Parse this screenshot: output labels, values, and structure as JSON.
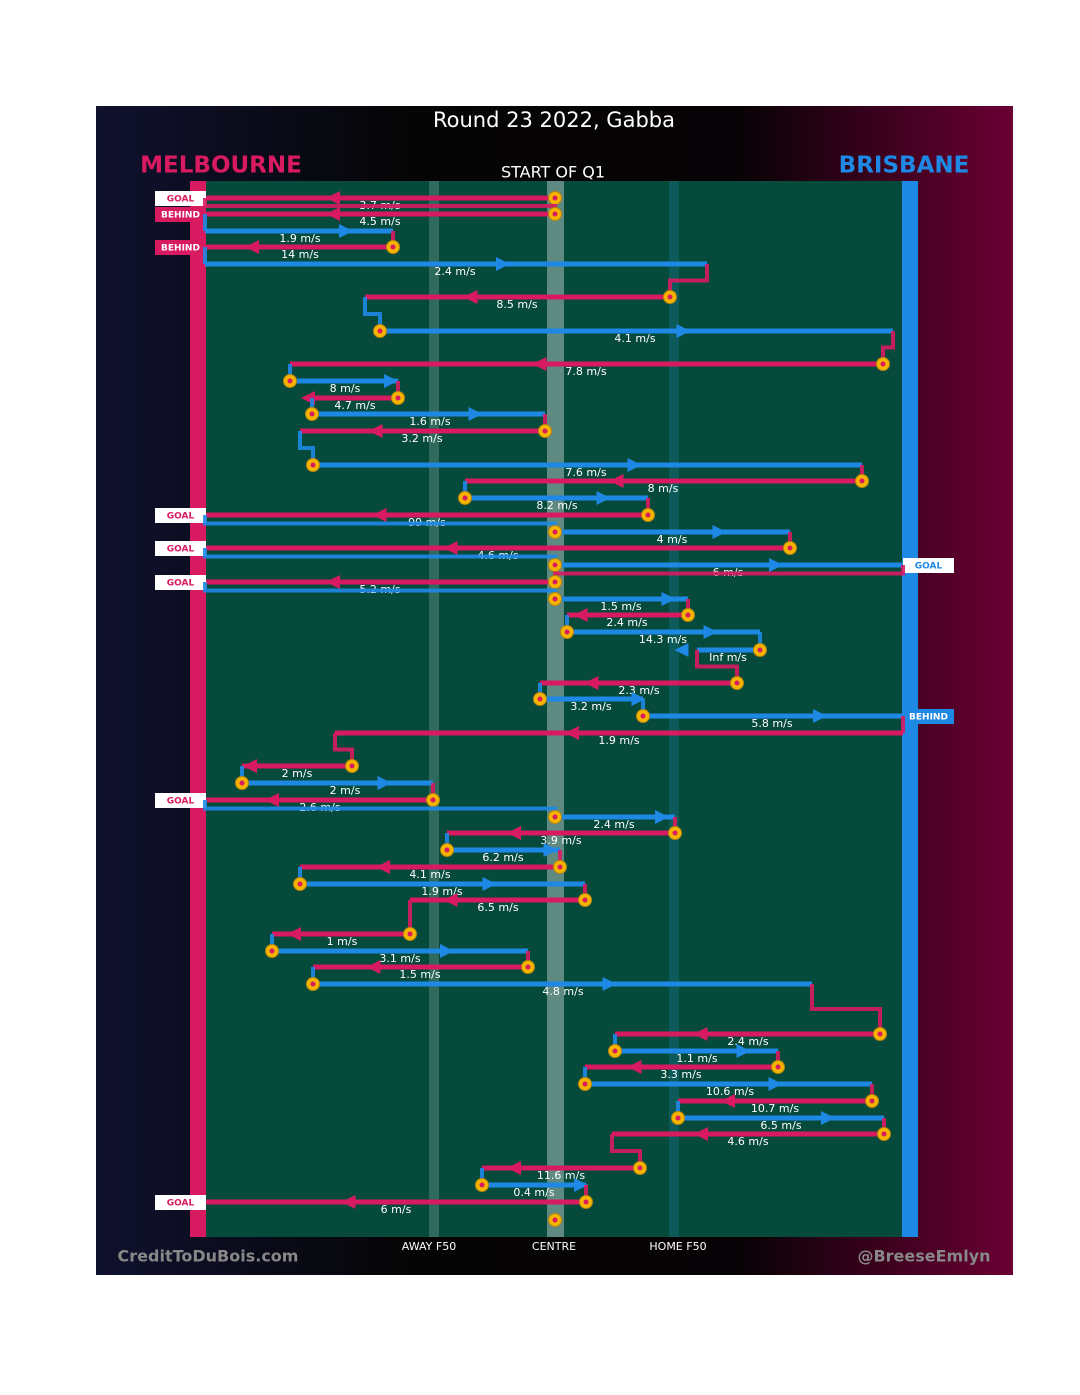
{
  "title": "Round 23 2022, Gabba",
  "subtitle": "START OF Q1",
  "teams": {
    "left": "MELBOURNE",
    "right": "BRISBANE"
  },
  "field_labels": [
    "AWAY F50",
    "CENTRE",
    "HOME F50"
  ],
  "credits": [
    "CreditToDuBois.com",
    "@BreeseEmlyn"
  ],
  "chains": [
    {
      "speed": "3.7 m/s",
      "color": "#d81b60",
      "outcome": "GOAL"
    },
    {
      "speed": "4.5 m/s",
      "color": "#d81b60",
      "outcome": "BEHIND"
    },
    {
      "speed": "1.9 m/s",
      "color": "#1e88e5"
    },
    {
      "speed": "14 m/s",
      "color": "#d81b60",
      "outcome": "BEHIND"
    },
    {
      "speed": "2.4 m/s",
      "color": "#1e88e5"
    },
    {
      "speed": "8.5 m/s",
      "color": "#d81b60"
    },
    {
      "speed": "4.1 m/s",
      "color": "#1e88e5"
    },
    {
      "speed": "7.8 m/s",
      "color": "#d81b60"
    },
    {
      "speed": "8 m/s",
      "color": "#1e88e5"
    },
    {
      "speed": "4.7 m/s",
      "color": "#d81b60"
    },
    {
      "speed": "1.6 m/s",
      "color": "#1e88e5"
    },
    {
      "speed": "3.2 m/s",
      "color": "#d81b60"
    },
    {
      "speed": "7.6 m/s",
      "color": "#1e88e5"
    },
    {
      "speed": "8 m/s",
      "color": "#d81b60"
    },
    {
      "speed": "8.2 m/s",
      "color": "#1e88e5"
    },
    {
      "speed": "99 m/s",
      "color": "#d81b60",
      "outcome": "GOAL"
    },
    {
      "speed": "4 m/s",
      "color": "#1e88e5"
    },
    {
      "speed": "4.6 m/s",
      "color": "#d81b60",
      "outcome": "GOAL"
    },
    {
      "speed": "6 m/s",
      "color": "#1e88e5",
      "outcome": "GOAL"
    },
    {
      "speed": "5.2 m/s",
      "color": "#d81b60",
      "outcome": "GOAL"
    },
    {
      "speed": "1.5 m/s",
      "color": "#1e88e5"
    },
    {
      "speed": "2.4 m/s",
      "color": "#d81b60"
    },
    {
      "speed": "14.3 m/s",
      "color": "#1e88e5"
    },
    {
      "speed": "Inf m/s",
      "color": "#1e88e5"
    },
    {
      "speed": "2.3 m/s",
      "color": "#d81b60"
    },
    {
      "speed": "3.2 m/s",
      "color": "#1e88e5"
    },
    {
      "speed": "5.8 m/s",
      "color": "#1e88e5",
      "outcome": "BEHIND"
    },
    {
      "speed": "1.9 m/s",
      "color": "#d81b60"
    },
    {
      "speed": "2 m/s",
      "color": "#d81b60"
    },
    {
      "speed": "2 m/s",
      "color": "#1e88e5"
    },
    {
      "speed": "2.6 m/s",
      "color": "#d81b60",
      "outcome": "GOAL"
    },
    {
      "speed": "2.4 m/s",
      "color": "#1e88e5"
    },
    {
      "speed": "3.9 m/s",
      "color": "#d81b60"
    },
    {
      "speed": "6.2 m/s",
      "color": "#1e88e5"
    },
    {
      "speed": "4.1 m/s",
      "color": "#d81b60"
    },
    {
      "speed": "1.9 m/s",
      "color": "#1e88e5"
    },
    {
      "speed": "6.5 m/s",
      "color": "#d81b60"
    },
    {
      "speed": "1 m/s",
      "color": "#d81b60"
    },
    {
      "speed": "3.1 m/s",
      "color": "#1e88e5"
    },
    {
      "speed": "1.5 m/s",
      "color": "#d81b60"
    },
    {
      "speed": "4.8 m/s",
      "color": "#1e88e5"
    },
    {
      "speed": "2.4 m/s",
      "color": "#d81b60"
    },
    {
      "speed": "1.1 m/s",
      "color": "#1e88e5"
    },
    {
      "speed": "3.3 m/s",
      "color": "#d81b60"
    },
    {
      "speed": "10.6 m/s",
      "color": "#1e88e5"
    },
    {
      "speed": "10.7 m/s",
      "color": "#d81b60"
    },
    {
      "speed": "6.5 m/s",
      "color": "#1e88e5"
    },
    {
      "speed": "4.6 m/s",
      "color": "#d81b60"
    },
    {
      "speed": "11.6 m/s",
      "color": "#d81b60"
    },
    {
      "speed": "0.4 m/s",
      "color": "#1e88e5"
    },
    {
      "speed": "6 m/s",
      "color": "#d81b60",
      "outcome": "GOAL"
    }
  ]
}
